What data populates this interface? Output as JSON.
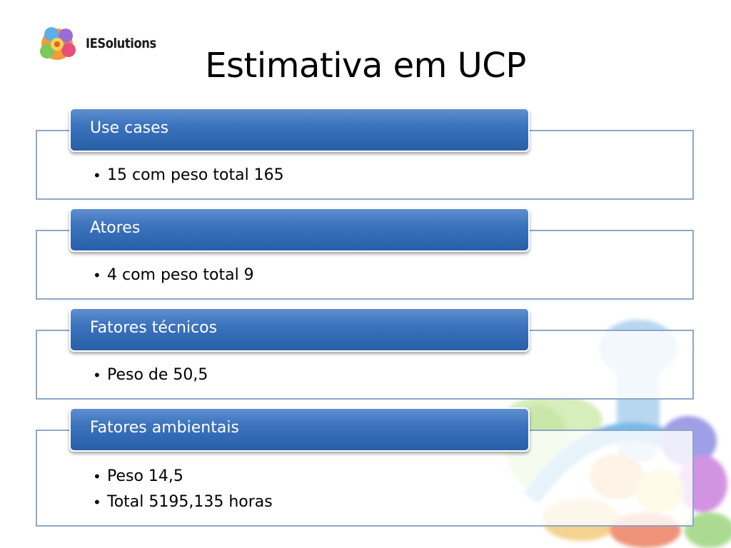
{
  "brand": {
    "name": "IESolutions"
  },
  "title": "Estimativa em UCP",
  "sections": [
    {
      "heading": "Use cases",
      "items": [
        "15 com peso total 165"
      ]
    },
    {
      "heading": "Atores",
      "items": [
        "4 com peso total 9"
      ]
    },
    {
      "heading": "Fatores técnicos",
      "items": [
        "Peso de 50,5"
      ]
    },
    {
      "heading": "Fatores ambientais",
      "items": [
        "Peso 14,5",
        "Total 5195,135 horas"
      ]
    }
  ]
}
